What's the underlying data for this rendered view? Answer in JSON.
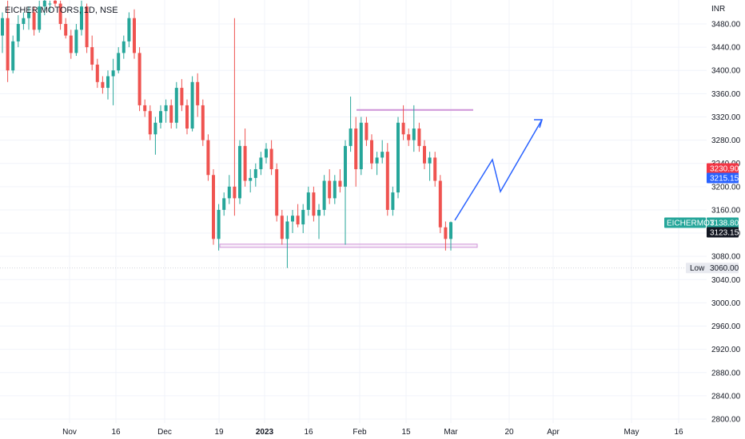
{
  "chart_data": {
    "type": "candlestick",
    "title": "EICHER MOTORS, 1D, NSE",
    "currency": "INR",
    "y_axis": {
      "ticks": [
        2800,
        2840,
        2880,
        2920,
        2960,
        3000,
        3040,
        3080,
        3120,
        3160,
        3200,
        3240,
        3280,
        3320,
        3360,
        3400,
        3440,
        3480
      ],
      "tick_labels": [
        "2800.00",
        "2840.00",
        "2880.00",
        "2920.00",
        "2960.00",
        "3000.00",
        "3040.00",
        "3080.00",
        "3120.00",
        "3160.00",
        "3200.00",
        "3240.00",
        "3280.00",
        "3320.00",
        "3360.00",
        "3400.00",
        "3440.00",
        "3480.00"
      ],
      "range": [
        2795,
        3525
      ]
    },
    "x_axis": {
      "labels": [
        {
          "text": "Nov",
          "bold": false
        },
        {
          "text": "16",
          "bold": false
        },
        {
          "text": "Dec",
          "bold": false
        },
        {
          "text": "19",
          "bold": false
        },
        {
          "text": "2023",
          "bold": true
        },
        {
          "text": "16",
          "bold": false
        },
        {
          "text": "Feb",
          "bold": false
        },
        {
          "text": "15",
          "bold": false
        },
        {
          "text": "Mar",
          "bold": false
        },
        {
          "text": "20",
          "bold": false
        },
        {
          "text": "Apr",
          "bold": false
        },
        {
          "text": "May",
          "bold": false
        },
        {
          "text": "16",
          "bold": false
        }
      ]
    },
    "colors": {
      "up": "#26a69a",
      "down": "#ef5350",
      "grid": "#f0f3fa",
      "box": "#ce93d8",
      "arrow": "#2962ff"
    },
    "candles": [
      [
        3460,
        3500,
        3430,
        3490
      ],
      [
        3490,
        3520,
        3380,
        3400
      ],
      [
        3400,
        3460,
        3395,
        3450
      ],
      [
        3450,
        3495,
        3440,
        3480
      ],
      [
        3480,
        3500,
        3470,
        3490
      ],
      [
        3490,
        3510,
        3470,
        3500
      ],
      [
        3500,
        3510,
        3460,
        3470
      ],
      [
        3470,
        3520,
        3465,
        3510
      ],
      [
        3510,
        3525,
        3495,
        3520
      ],
      [
        3515,
        3520,
        3500,
        3515
      ],
      [
        3520,
        3525,
        3510,
        3515
      ],
      [
        3515,
        3520,
        3470,
        3480
      ],
      [
        3480,
        3490,
        3455,
        3460
      ],
      [
        3460,
        3470,
        3420,
        3430
      ],
      [
        3430,
        3480,
        3425,
        3470
      ],
      [
        3470,
        3520,
        3460,
        3510
      ],
      [
        3510,
        3515,
        3430,
        3440
      ],
      [
        3440,
        3460,
        3400,
        3410
      ],
      [
        3410,
        3420,
        3370,
        3380
      ],
      [
        3380,
        3390,
        3360,
        3370
      ],
      [
        3370,
        3400,
        3350,
        3390
      ],
      [
        3390,
        3420,
        3340,
        3400
      ],
      [
        3400,
        3440,
        3395,
        3430
      ],
      [
        3430,
        3460,
        3420,
        3450
      ],
      [
        3450,
        3500,
        3440,
        3490
      ],
      [
        3490,
        3505,
        3420,
        3430
      ],
      [
        3430,
        3440,
        3330,
        3340
      ],
      [
        3340,
        3350,
        3320,
        3330
      ],
      [
        3330,
        3340,
        3280,
        3290
      ],
      [
        3290,
        3320,
        3255,
        3310
      ],
      [
        3310,
        3340,
        3300,
        3330
      ],
      [
        3330,
        3350,
        3310,
        3340
      ],
      [
        3340,
        3350,
        3300,
        3310
      ],
      [
        3310,
        3380,
        3300,
        3370
      ],
      [
        3370,
        3385,
        3330,
        3340
      ],
      [
        3340,
        3350,
        3290,
        3300
      ],
      [
        3300,
        3390,
        3295,
        3380
      ],
      [
        3380,
        3395,
        3320,
        3340
      ],
      [
        3340,
        3350,
        3270,
        3280
      ],
      [
        3280,
        3290,
        3210,
        3220
      ],
      [
        3220,
        3230,
        3100,
        3110
      ],
      [
        3110,
        3170,
        3090,
        3160
      ],
      [
        3160,
        3190,
        3150,
        3180
      ],
      [
        3180,
        3220,
        3170,
        3200
      ],
      [
        3200,
        3490,
        3150,
        3180
      ],
      [
        3180,
        3280,
        3170,
        3270
      ],
      [
        3270,
        3300,
        3200,
        3210
      ],
      [
        3210,
        3230,
        3190,
        3215
      ],
      [
        3215,
        3240,
        3200,
        3230
      ],
      [
        3230,
        3260,
        3220,
        3250
      ],
      [
        3250,
        3275,
        3240,
        3265
      ],
      [
        3265,
        3280,
        3220,
        3230
      ],
      [
        3230,
        3240,
        3140,
        3150
      ],
      [
        3150,
        3160,
        3100,
        3110
      ],
      [
        3110,
        3150,
        3060,
        3140
      ],
      [
        3140,
        3160,
        3120,
        3150
      ],
      [
        3150,
        3170,
        3130,
        3135
      ],
      [
        3135,
        3170,
        3120,
        3160
      ],
      [
        3160,
        3200,
        3150,
        3190
      ],
      [
        3190,
        3200,
        3140,
        3150
      ],
      [
        3150,
        3170,
        3110,
        3160
      ],
      [
        3160,
        3220,
        3150,
        3210
      ],
      [
        3210,
        3230,
        3170,
        3180
      ],
      [
        3180,
        3220,
        3170,
        3210
      ],
      [
        3210,
        3230,
        3190,
        3200
      ],
      [
        3200,
        3280,
        3100,
        3270
      ],
      [
        3270,
        3355,
        3260,
        3300
      ],
      [
        3300,
        3320,
        3200,
        3230
      ],
      [
        3230,
        3320,
        3220,
        3310
      ],
      [
        3310,
        3320,
        3270,
        3280
      ],
      [
        3280,
        3290,
        3230,
        3240
      ],
      [
        3240,
        3260,
        3220,
        3250
      ],
      [
        3250,
        3280,
        3240,
        3260
      ],
      [
        3260,
        3275,
        3150,
        3160
      ],
      [
        3160,
        3200,
        3150,
        3190
      ],
      [
        3190,
        3320,
        3180,
        3310
      ],
      [
        3310,
        3340,
        3280,
        3290
      ],
      [
        3290,
        3300,
        3270,
        3280
      ],
      [
        3280,
        3340,
        3260,
        3300
      ],
      [
        3300,
        3310,
        3260,
        3270
      ],
      [
        3270,
        3280,
        3230,
        3240
      ],
      [
        3240,
        3260,
        3210,
        3250
      ],
      [
        3250,
        3260,
        3200,
        3210
      ],
      [
        3210,
        3220,
        3120,
        3130
      ],
      [
        3130,
        3140,
        3090,
        3110
      ],
      [
        3110,
        3140,
        3090,
        3138.8
      ]
    ],
    "price_tags": [
      {
        "text": "3230.90",
        "value": 3230.9,
        "color": "#f23645"
      },
      {
        "text": "3215.15",
        "value": 3215.15,
        "color": "#2962ff"
      },
      {
        "text": "3138.80",
        "value": 3138.8,
        "color": "#26a69a",
        "label": "EICHERMOT"
      },
      {
        "text": "3123.15",
        "value": 3123.15,
        "color": "#131722"
      }
    ],
    "low": {
      "label": "Low",
      "text": "3060.00",
      "value": 3060
    },
    "resistance": {
      "value": 3332
    },
    "support_box": {
      "top": 3101,
      "bottom": 3096
    }
  }
}
